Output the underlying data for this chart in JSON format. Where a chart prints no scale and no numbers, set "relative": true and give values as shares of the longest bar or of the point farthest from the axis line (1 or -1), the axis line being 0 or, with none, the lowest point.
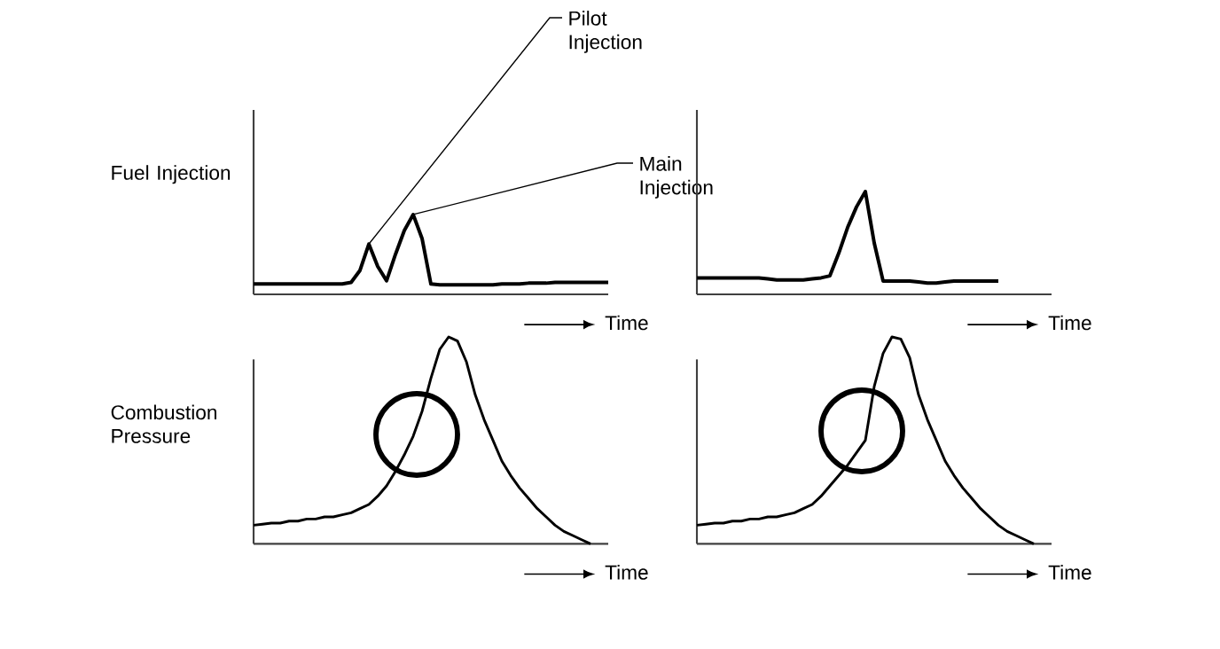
{
  "chart_data": [
    {
      "type": "line",
      "relative": true,
      "ylabel": "Fuel Injection",
      "xlabel": "Time",
      "color": "#000000",
      "annotations": [
        "Pilot Injection",
        "Main Injection"
      ],
      "categories": [
        null,
        null,
        null,
        null,
        null,
        null,
        null,
        null,
        null,
        null,
        null,
        null,
        null,
        null,
        null,
        null,
        null,
        null,
        null,
        null,
        null,
        null,
        null,
        null,
        null,
        null,
        null,
        null,
        null,
        null,
        null,
        null,
        null,
        null,
        null,
        null,
        null,
        null,
        null,
        null,
        null
      ],
      "values": [
        0.13,
        0.13,
        0.13,
        0.13,
        0.13,
        0.13,
        0.13,
        0.13,
        0.13,
        0.13,
        0.13,
        0.15,
        0.3,
        0.63,
        0.35,
        0.17,
        0.5,
        0.8,
        1,
        0.7,
        0.13,
        0.12,
        0.12,
        0.12,
        0.12,
        0.12,
        0.12,
        0.12,
        0.13,
        0.13,
        0.13,
        0.14,
        0.14,
        0.14,
        0.15,
        0.15,
        0.15,
        0.15,
        0.15,
        0.15,
        0.15
      ]
    },
    {
      "type": "line",
      "relative": true,
      "xlabel": "Time",
      "color": "#000000",
      "categories": [
        null,
        null,
        null,
        null,
        null,
        null,
        null,
        null,
        null,
        null,
        null,
        null,
        null,
        null,
        null,
        null,
        null,
        null,
        null,
        null,
        null,
        null,
        null,
        null,
        null,
        null,
        null,
        null,
        null,
        null,
        null,
        null,
        null,
        null,
        null,
        null,
        null,
        null,
        null,
        null,
        null
      ],
      "values": [
        0.16,
        0.16,
        0.16,
        0.16,
        0.16,
        0.16,
        0.16,
        0.16,
        0.15,
        0.14,
        0.14,
        0.14,
        0.14,
        0.15,
        0.16,
        0.18,
        0.4,
        0.65,
        0.85,
        1,
        0.5,
        0.13,
        0.13,
        0.13,
        0.13,
        0.12,
        0.11,
        0.11,
        0.12,
        0.13,
        0.13,
        0.13,
        0.13,
        0.13,
        0.13,
        null,
        null,
        null,
        null,
        null,
        null
      ]
    },
    {
      "type": "line",
      "relative": true,
      "ylabel": "Combustion Pressure",
      "xlabel": "Time",
      "color": "#000000",
      "categories": [
        null,
        null,
        null,
        null,
        null,
        null,
        null,
        null,
        null,
        null,
        null,
        null,
        null,
        null,
        null,
        null,
        null,
        null,
        null,
        null,
        null,
        null,
        null,
        null,
        null,
        null,
        null,
        null,
        null,
        null,
        null,
        null,
        null,
        null,
        null,
        null,
        null,
        null,
        null,
        null,
        null
      ],
      "values": [
        0.09,
        0.095,
        0.1,
        0.1,
        0.11,
        0.11,
        0.12,
        0.12,
        0.13,
        0.13,
        0.14,
        0.15,
        0.17,
        0.19,
        0.23,
        0.28,
        0.35,
        0.43,
        0.52,
        0.64,
        0.8,
        0.94,
        1,
        0.98,
        0.88,
        0.72,
        0.6,
        0.5,
        0.4,
        0.33,
        0.27,
        0.22,
        0.17,
        0.13,
        0.09,
        0.06,
        0.04,
        0.02,
        0,
        null,
        null
      ]
    },
    {
      "type": "line",
      "relative": true,
      "xlabel": "Time",
      "color": "#000000",
      "categories": [
        null,
        null,
        null,
        null,
        null,
        null,
        null,
        null,
        null,
        null,
        null,
        null,
        null,
        null,
        null,
        null,
        null,
        null,
        null,
        null,
        null,
        null,
        null,
        null,
        null,
        null,
        null,
        null,
        null,
        null,
        null,
        null,
        null,
        null,
        null,
        null,
        null,
        null,
        null,
        null,
        null
      ],
      "values": [
        0.09,
        0.095,
        0.1,
        0.1,
        0.11,
        0.11,
        0.12,
        0.12,
        0.13,
        0.13,
        0.14,
        0.15,
        0.17,
        0.19,
        0.23,
        0.28,
        0.33,
        0.38,
        0.44,
        0.5,
        0.76,
        0.92,
        1,
        0.99,
        0.9,
        0.72,
        0.6,
        0.5,
        0.4,
        0.33,
        0.27,
        0.22,
        0.17,
        0.13,
        0.09,
        0.06,
        0.04,
        0.02,
        0,
        null,
        null
      ]
    }
  ]
}
